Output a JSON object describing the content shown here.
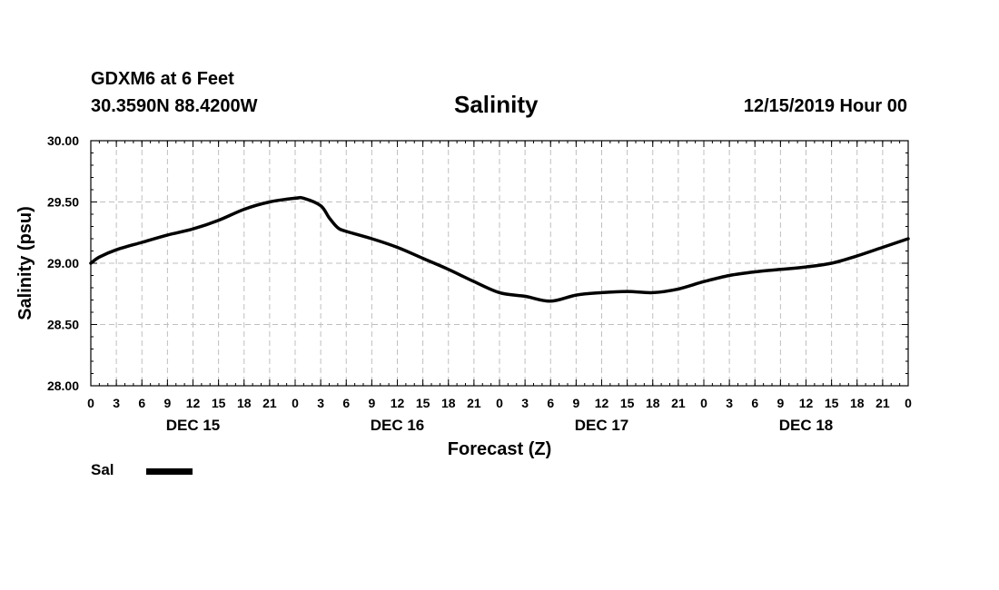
{
  "header": {
    "station": "GDXM6 at 6 Feet",
    "coordinates": "30.3590N 88.4200W",
    "title": "Salinity",
    "forecast_time": "12/15/2019 Hour 00"
  },
  "legend": {
    "series_label": "Sal"
  },
  "colors": {
    "line": "#000000",
    "grid": "#bfbfbf",
    "background": "#ffffff"
  },
  "chart_data": {
    "type": "line",
    "title": "Salinity",
    "xlabel": "Forecast (Z)",
    "ylabel": "Salinity (psu)",
    "xlim": [
      0,
      96
    ],
    "ylim": [
      28.0,
      30.0
    ],
    "y_ticks": [
      "28.00",
      "28.50",
      "29.00",
      "29.50",
      "30.00"
    ],
    "x_tick_labels": [
      "0",
      "3",
      "6",
      "9",
      "12",
      "15",
      "18",
      "21",
      "0",
      "3",
      "6",
      "9",
      "12",
      "15",
      "18",
      "21",
      "0",
      "3",
      "6",
      "9",
      "12",
      "15",
      "18",
      "21",
      "0",
      "3",
      "6",
      "9",
      "12",
      "15",
      "18",
      "21",
      "0"
    ],
    "day_labels": [
      "DEC 15",
      "DEC 16",
      "DEC 17",
      "DEC 18"
    ],
    "grid": true,
    "series": [
      {
        "name": "Sal",
        "x": [
          0,
          1,
          3,
          6,
          9,
          12,
          15,
          18,
          21,
          24,
          25,
          27,
          28,
          29,
          30,
          33,
          36,
          39,
          42,
          45,
          48,
          51,
          54,
          57,
          60,
          63,
          66,
          69,
          72,
          75,
          78,
          81,
          84,
          87,
          90,
          93,
          96
        ],
        "y": [
          29.0,
          29.05,
          29.11,
          29.17,
          29.23,
          29.28,
          29.35,
          29.44,
          29.5,
          29.53,
          29.53,
          29.47,
          29.37,
          29.29,
          29.26,
          29.2,
          29.13,
          29.04,
          28.95,
          28.85,
          28.76,
          28.73,
          28.69,
          28.74,
          28.76,
          28.77,
          28.76,
          28.79,
          28.85,
          28.9,
          28.93,
          28.95,
          28.97,
          29.0,
          29.06,
          29.13,
          29.2
        ]
      }
    ]
  }
}
